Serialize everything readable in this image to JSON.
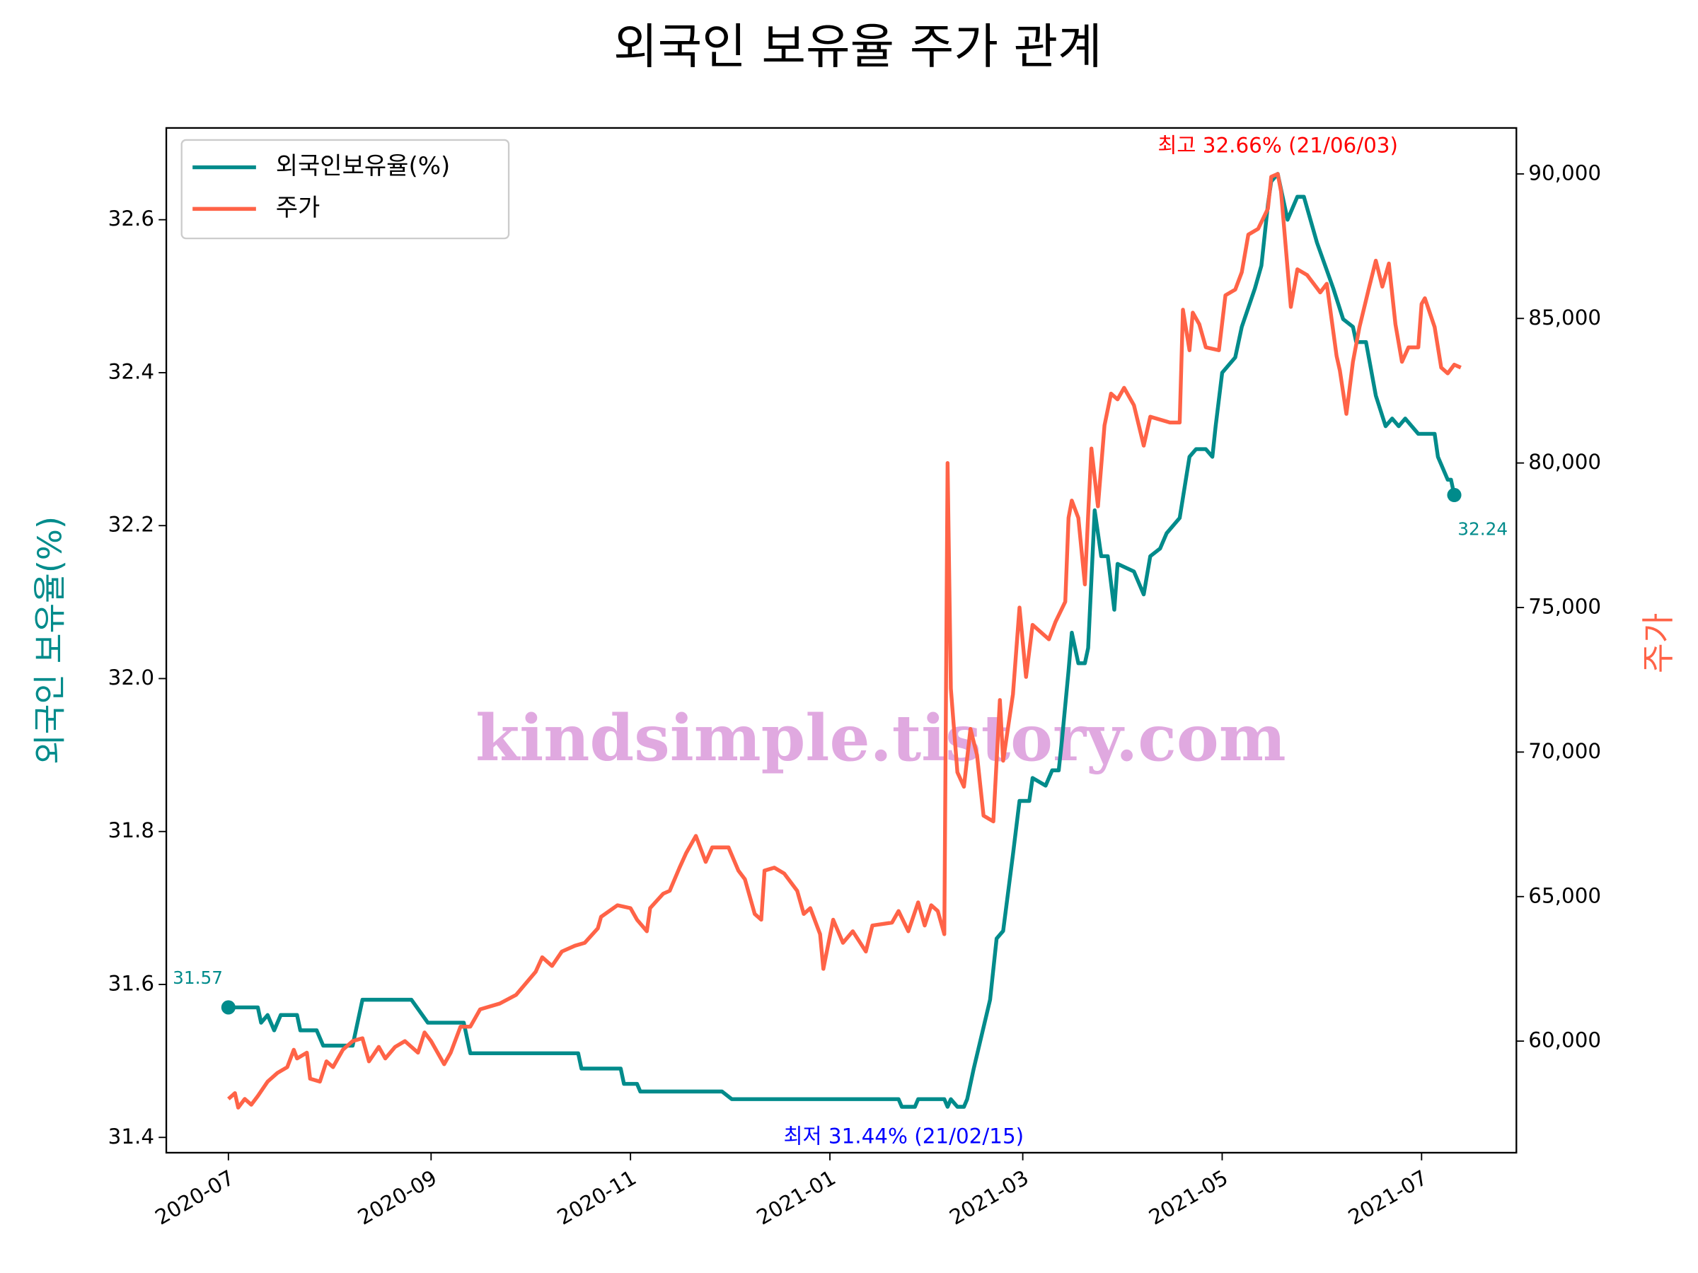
{
  "chart_data": {
    "type": "line",
    "title": "외국인 보유율 주가 관계",
    "ylabel": "외국인 보유율(%)",
    "y2label": "주가",
    "watermark": "kindsimple.tistory.com",
    "legend": "upper left",
    "xlim": [
      "2020-06-12",
      "2021-07-30"
    ],
    "xticks": [
      {
        "value": "2020-07-01",
        "label": "2020-07"
      },
      {
        "value": "2020-09-01",
        "label": "2020-09"
      },
      {
        "value": "2020-11-01",
        "label": "2020-11"
      },
      {
        "value": "2021-01-01",
        "label": "2021-01"
      },
      {
        "value": "2021-03-01",
        "label": "2021-03"
      },
      {
        "value": "2021-05-01",
        "label": "2021-05"
      },
      {
        "value": "2021-07-01",
        "label": "2021-07"
      }
    ],
    "ylim": [
      31.38,
      32.72
    ],
    "yticks": [
      31.4,
      31.6,
      31.8,
      {
        "value": 32.0,
        "label": "32.0"
      },
      32.2,
      32.4,
      32.6
    ],
    "y2lim": [
      56140,
      91590
    ],
    "y2ticks": [
      {
        "value": 60000,
        "label": "60,000"
      },
      {
        "value": 65000,
        "label": "65,000"
      },
      {
        "value": 70000,
        "label": "70,000"
      },
      {
        "value": 75000,
        "label": "75,000"
      },
      {
        "value": 80000,
        "label": "80,000"
      },
      {
        "value": 85000,
        "label": "85,000"
      },
      {
        "value": 90000,
        "label": "90,000"
      }
    ],
    "annotations": [
      {
        "text": "최고 32.66% (21/06/03)",
        "color": "#ff0000"
      },
      {
        "text": "최저 31.44% (21/02/15)",
        "color": "#0000ff"
      }
    ],
    "series": [
      {
        "name": "외국인보유율(%)",
        "color": "#008b8b",
        "axis": "y",
        "x": [
          "2020-07-01",
          "2020-07-10",
          "2020-07-11",
          "2020-07-13",
          "2020-07-15",
          "2020-07-17",
          "2020-07-22",
          "2020-07-23",
          "2020-07-28",
          "2020-07-30",
          "2020-08-08",
          "2020-08-11",
          "2020-08-26",
          "2020-08-31",
          "2020-09-11",
          "2020-09-13",
          "2020-10-16",
          "2020-10-17",
          "2020-10-29",
          "2020-10-30",
          "2020-11-03",
          "2020-11-04",
          "2020-11-29",
          "2020-12-02",
          "2021-01-22",
          "2021-01-23",
          "2021-01-27",
          "2021-01-28",
          "2021-02-05",
          "2021-02-06",
          "2021-02-07",
          "2021-02-09",
          "2021-02-11",
          "2021-02-12",
          "2021-02-14",
          "2021-02-19",
          "2021-02-21",
          "2021-02-23",
          "2021-02-26",
          "2021-02-28",
          "2021-03-03",
          "2021-03-04",
          "2021-03-08",
          "2021-03-10",
          "2021-03-12",
          "2021-03-13",
          "2021-03-15",
          "2021-03-16",
          "2021-03-18",
          "2021-03-20",
          "2021-03-21",
          "2021-03-23",
          "2021-03-25",
          "2021-03-27",
          "2021-03-29",
          "2021-03-30",
          "2021-04-04",
          "2021-04-07",
          "2021-04-09",
          "2021-04-12",
          "2021-04-14",
          "2021-04-18",
          "2021-04-21",
          "2021-04-23",
          "2021-04-26",
          "2021-04-28",
          "2021-04-29",
          "2021-05-01",
          "2021-05-05",
          "2021-05-07",
          "2021-05-11",
          "2021-05-13",
          "2021-05-15",
          "2021-05-16",
          "2021-05-18",
          "2021-05-21",
          "2021-05-24",
          "2021-05-26",
          "2021-05-30",
          "2021-06-04",
          "2021-06-07",
          "2021-06-10",
          "2021-06-11",
          "2021-06-14",
          "2021-06-17",
          "2021-06-20",
          "2021-06-22",
          "2021-06-24",
          "2021-06-26",
          "2021-06-30",
          "2021-07-05",
          "2021-07-06",
          "2021-07-09",
          "2021-07-10",
          "2021-07-11"
        ],
        "values": [
          31.57,
          31.57,
          31.55,
          31.56,
          31.54,
          31.56,
          31.56,
          31.54,
          31.54,
          31.52,
          31.52,
          31.58,
          31.58,
          31.55,
          31.55,
          31.51,
          31.51,
          31.49,
          31.49,
          31.47,
          31.47,
          31.46,
          31.46,
          31.45,
          31.45,
          31.44,
          31.44,
          31.45,
          31.45,
          31.44,
          31.45,
          31.44,
          31.44,
          31.45,
          31.49,
          31.58,
          31.66,
          31.67,
          31.77,
          31.84,
          31.84,
          31.87,
          31.86,
          31.88,
          31.88,
          31.92,
          32.01,
          32.06,
          32.02,
          32.02,
          32.04,
          32.22,
          32.16,
          32.16,
          32.09,
          32.15,
          32.14,
          32.11,
          32.16,
          32.17,
          32.19,
          32.21,
          32.29,
          32.3,
          32.3,
          32.29,
          32.33,
          32.4,
          32.42,
          32.46,
          32.51,
          32.54,
          32.62,
          32.65,
          32.66,
          32.6,
          32.63,
          32.63,
          32.57,
          32.51,
          32.47,
          32.46,
          32.44,
          32.44,
          32.37,
          32.33,
          32.34,
          32.33,
          32.34,
          32.32,
          32.32,
          32.29,
          32.26,
          32.26,
          32.24
        ]
      },
      {
        "name": "주가",
        "color": "#ff6347",
        "axis": "y2",
        "x": [
          "2020-07-01",
          "2020-07-03",
          "2020-07-04",
          "2020-07-06",
          "2020-07-08",
          "2020-07-10",
          "2020-07-13",
          "2020-07-16",
          "2020-07-19",
          "2020-07-21",
          "2020-07-22",
          "2020-07-25",
          "2020-07-26",
          "2020-07-29",
          "2020-07-31",
          "2020-08-02",
          "2020-08-05",
          "2020-08-08",
          "2020-08-11",
          "2020-08-13",
          "2020-08-16",
          "2020-08-18",
          "2020-08-21",
          "2020-08-24",
          "2020-08-28",
          "2020-08-30",
          "2020-09-01",
          "2020-09-05",
          "2020-09-07",
          "2020-09-10",
          "2020-09-13",
          "2020-09-16",
          "2020-09-22",
          "2020-09-27",
          "2020-09-30",
          "2020-10-03",
          "2020-10-05",
          "2020-10-08",
          "2020-10-11",
          "2020-10-15",
          "2020-10-18",
          "2020-10-22",
          "2020-10-23",
          "2020-10-28",
          "2020-11-01",
          "2020-11-03",
          "2020-11-06",
          "2020-11-07",
          "2020-11-11",
          "2020-11-13",
          "2020-11-16",
          "2020-11-18",
          "2020-11-21",
          "2020-11-24",
          "2020-11-26",
          "2020-12-01",
          "2020-12-04",
          "2020-12-06",
          "2020-12-09",
          "2020-12-11",
          "2020-12-12",
          "2020-12-15",
          "2020-12-18",
          "2020-12-22",
          "2020-12-24",
          "2020-12-26",
          "2020-12-29",
          "2020-12-30",
          "2021-01-02",
          "2021-01-05",
          "2021-01-08",
          "2021-01-12",
          "2021-01-14",
          "2021-01-20",
          "2021-01-22",
          "2021-01-25",
          "2021-01-28",
          "2021-01-30",
          "2021-02-01",
          "2021-02-03",
          "2021-02-05",
          "2021-02-06",
          "2021-02-07",
          "2021-02-09",
          "2021-02-11",
          "2021-02-13",
          "2021-02-15",
          "2021-02-17",
          "2021-02-20",
          "2021-02-22",
          "2021-02-23",
          "2021-02-26",
          "2021-02-28",
          "2021-03-02",
          "2021-03-04",
          "2021-03-09",
          "2021-03-11",
          "2021-03-14",
          "2021-03-15",
          "2021-03-16",
          "2021-03-18",
          "2021-03-20",
          "2021-03-21",
          "2021-03-22",
          "2021-03-24",
          "2021-03-26",
          "2021-03-28",
          "2021-03-30",
          "2021-04-01",
          "2021-04-04",
          "2021-04-07",
          "2021-04-09",
          "2021-04-15",
          "2021-04-18",
          "2021-04-19",
          "2021-04-21",
          "2021-04-22",
          "2021-04-24",
          "2021-04-26",
          "2021-04-30",
          "2021-05-02",
          "2021-05-05",
          "2021-05-07",
          "2021-05-09",
          "2021-05-12",
          "2021-05-15",
          "2021-05-16",
          "2021-05-18",
          "2021-05-19",
          "2021-05-22",
          "2021-05-24",
          "2021-05-27",
          "2021-05-31",
          "2021-06-02",
          "2021-06-05",
          "2021-06-06",
          "2021-06-08",
          "2021-06-10",
          "2021-06-12",
          "2021-06-15",
          "2021-06-17",
          "2021-06-19",
          "2021-06-21",
          "2021-06-23",
          "2021-06-25",
          "2021-06-27",
          "2021-06-30",
          "2021-07-01",
          "2021-07-02",
          "2021-07-05",
          "2021-07-07",
          "2021-07-09",
          "2021-07-11",
          "2021-07-13"
        ],
        "values": [
          58000,
          58200,
          57700,
          58000,
          57800,
          58100,
          58600,
          58900,
          59100,
          59700,
          59400,
          59600,
          58700,
          58600,
          59300,
          59100,
          59700,
          60000,
          60100,
          59300,
          59800,
          59400,
          59800,
          60000,
          59600,
          60300,
          60000,
          59200,
          59600,
          60500,
          60500,
          61100,
          61300,
          61600,
          62000,
          62400,
          62900,
          62600,
          63100,
          63300,
          63400,
          63900,
          64300,
          64700,
          64600,
          64200,
          63800,
          64600,
          65100,
          65200,
          66000,
          66500,
          67100,
          66200,
          66700,
          66700,
          65900,
          65600,
          64400,
          64200,
          65900,
          66000,
          65800,
          65200,
          64400,
          64600,
          63700,
          62500,
          64200,
          63400,
          63800,
          63100,
          64000,
          64100,
          64500,
          63800,
          64800,
          64000,
          64700,
          64500,
          63700,
          80000,
          72200,
          69300,
          68800,
          70800,
          69900,
          67800,
          67600,
          71800,
          69700,
          72000,
          75000,
          72600,
          74400,
          73900,
          74500,
          75200,
          78100,
          78700,
          78100,
          75800,
          78200,
          80500,
          78500,
          81300,
          82400,
          82200,
          82600,
          82000,
          80600,
          81600,
          81400,
          81400,
          85300,
          83900,
          85200,
          84800,
          84000,
          83900,
          85800,
          86000,
          86600,
          87900,
          88100,
          88800,
          89900,
          90000,
          89400,
          85400,
          86700,
          86500,
          85900,
          86200,
          83700,
          83200,
          81700,
          83500,
          84700,
          86100,
          87000,
          86100,
          86900,
          84800,
          83500,
          84000,
          84000,
          85500,
          85700,
          84700,
          83300,
          83100,
          83400,
          83300
        ]
      }
    ]
  }
}
